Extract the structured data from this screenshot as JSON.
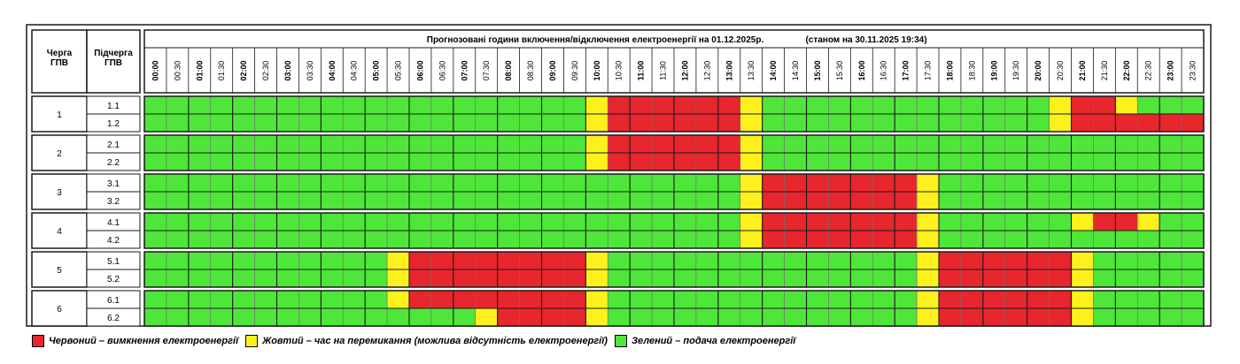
{
  "colors": {
    "red": "#e8262d",
    "yellow": "#fcf11c",
    "green": "#4fe63a",
    "line": "#1a1a1a",
    "grid": "#6e6e6e"
  },
  "chart_data": {
    "type": "table",
    "title": "Прогнозовані години включення/відключення електроенергії на 01.12.2025р.",
    "status_note": "(станом на 30.11.2025 19:34)",
    "header_queue": [
      "Черга",
      "ГПВ"
    ],
    "header_subqueue": [
      "Підчерга",
      "ГПВ"
    ],
    "time_slots": [
      "00:00",
      "00:30",
      "01:00",
      "01:30",
      "02:00",
      "02:30",
      "03:00",
      "03:30",
      "04:00",
      "04:30",
      "05:00",
      "05:30",
      "06:00",
      "06:30",
      "07:00",
      "07:30",
      "08:00",
      "08:30",
      "09:00",
      "09:30",
      "10:00",
      "10:30",
      "11:00",
      "11:30",
      "12:00",
      "12:30",
      "13:00",
      "13:30",
      "14:00",
      "14:30",
      "15:00",
      "15:30",
      "16:00",
      "16:30",
      "17:00",
      "17:30",
      "18:00",
      "18:30",
      "19:00",
      "19:30",
      "20:00",
      "20:30",
      "21:00",
      "21:30",
      "22:00",
      "22:30",
      "23:00",
      "23:30"
    ],
    "status_legend": {
      "R": "off",
      "Y": "switching",
      "G": "on"
    },
    "groups": [
      {
        "queue": "1",
        "rows": [
          {
            "sub": "1.1",
            "statuses": "GGGGGGGGGGGGGGGGGGGGYRRRRRRYGGGGGGGGGGGGGYRRYGGG"
          },
          {
            "sub": "1.2",
            "statuses": "GGGGGGGGGGGGGGGGGGGGYRRRRRRYGGGGGGGGGGGGGYRRRRRR"
          }
        ]
      },
      {
        "queue": "2",
        "rows": [
          {
            "sub": "2.1",
            "statuses": "GGGGGGGGGGGGGGGGGGGGYRRRRRRYGGGGGGGGGGGGGGGGGGGG"
          },
          {
            "sub": "2.2",
            "statuses": "GGGGGGGGGGGGGGGGGGGGYRRRRRRYGGGGGGGGGGGGGGGGGGGG"
          }
        ]
      },
      {
        "queue": "3",
        "rows": [
          {
            "sub": "3.1",
            "statuses": "GGGGGGGGGGGGGGGGGGGGGGGGGGGYRRRRRRRYGGGGGGGGGGGG"
          },
          {
            "sub": "3.2",
            "statuses": "GGGGGGGGGGGGGGGGGGGGGGGGGGGYRRRRRRRYGGGGGGGGGGGG"
          }
        ]
      },
      {
        "queue": "4",
        "rows": [
          {
            "sub": "4.1",
            "statuses": "GGGGGGGGGGGGGGGGGGGGGGGGGGGYRRRRRRRYGGGGGGYRRYGG"
          },
          {
            "sub": "4.2",
            "statuses": "GGGGGGGGGGGGGGGGGGGGGGGGGGGYRRRRRRRYGGGGGGGGGGGG"
          }
        ]
      },
      {
        "queue": "5",
        "rows": [
          {
            "sub": "5.1",
            "statuses": "GGGGGGGGGGGYRRRRRRRRYGGGGGGGGGGGGGGYRRRRRRYGGGGG"
          },
          {
            "sub": "5.2",
            "statuses": "GGGGGGGGGGGYRRRRRRRRYGGGGGGGGGGGGGGYRRRRRRYGGGGG"
          }
        ]
      },
      {
        "queue": "6",
        "rows": [
          {
            "sub": "6.1",
            "statuses": "GGGGGGGGGGGYRRRRRRRRYGGGGGGGGGGGGGGYRRRRRRYGGGGG"
          },
          {
            "sub": "6.2",
            "statuses": "GGGGGGGGGGGGGGGYRRRRYGGGGGGGGGGGGGGYRRRRRRYGGGGG"
          }
        ]
      }
    ],
    "legend": [
      {
        "key": "R",
        "label": "Червоний – вимкнення електроенергії"
      },
      {
        "key": "Y",
        "label": "Жовтий – час на перемикання (можлива відсутність електроенергії)"
      },
      {
        "key": "G",
        "label": "Зелений – подача електроенергії"
      }
    ]
  }
}
